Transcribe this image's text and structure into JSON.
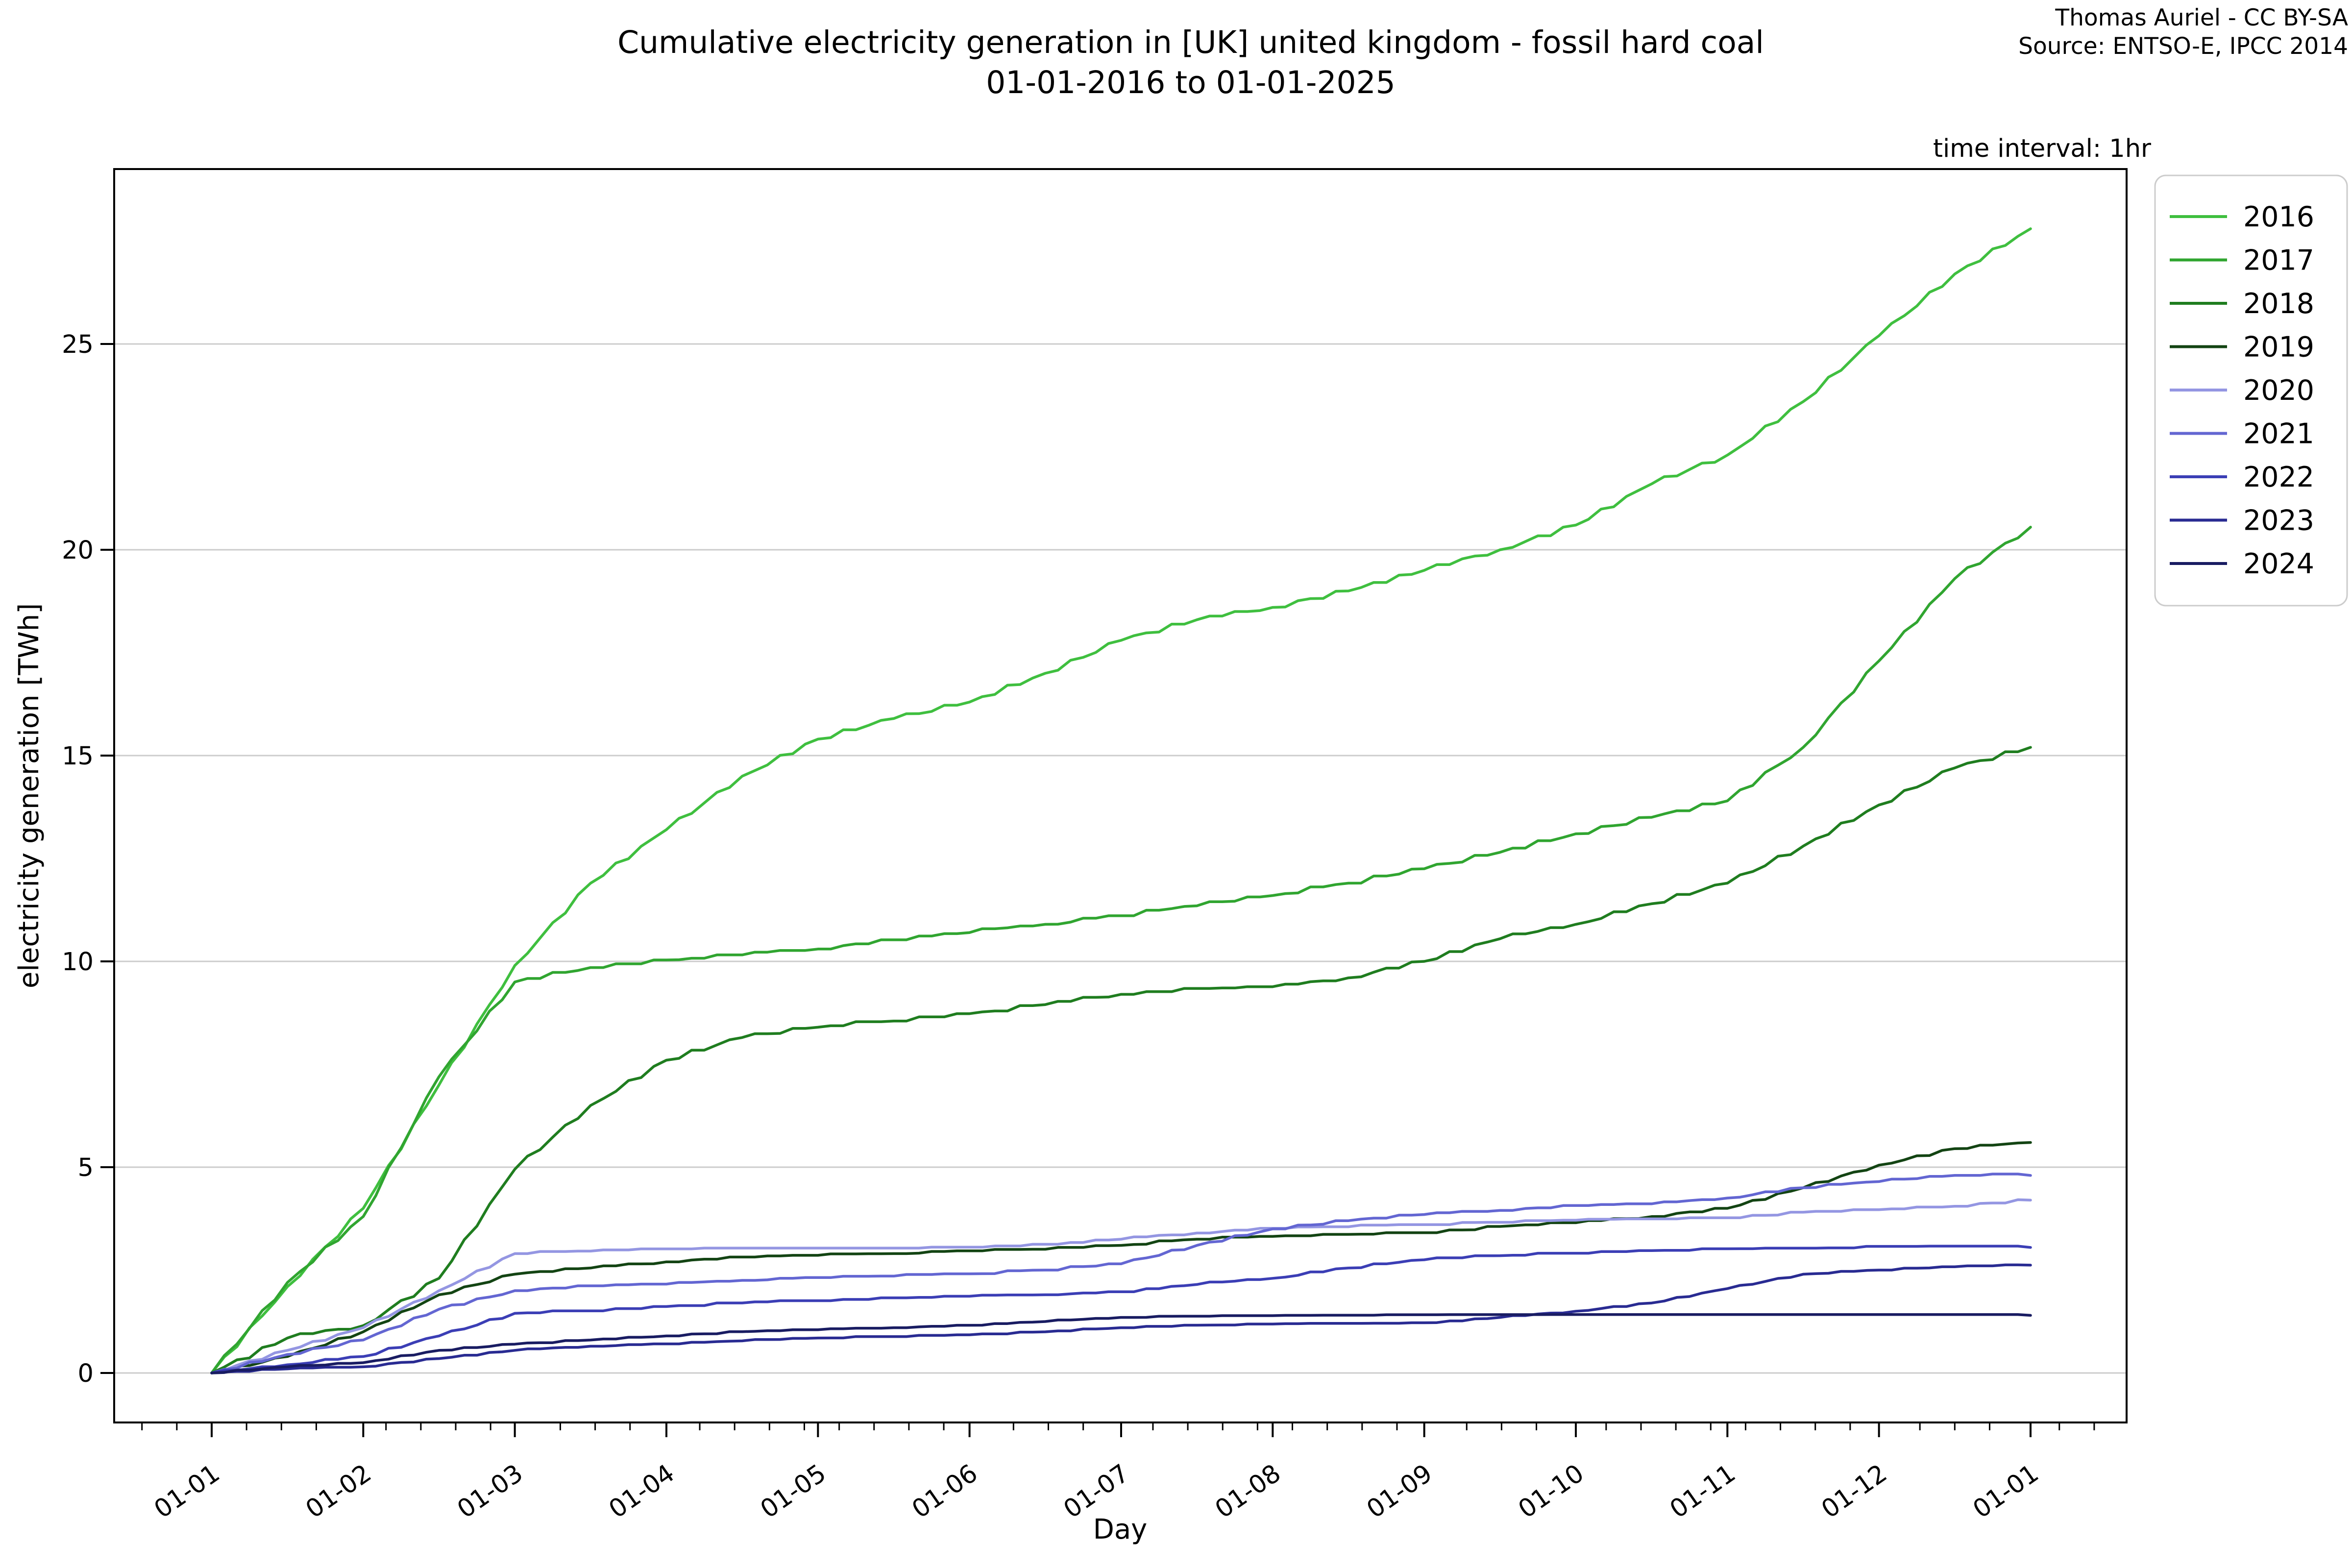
{
  "title": {
    "line1": "Cumulative electricity generation in [UK] united kingdom - fossil hard coal",
    "line2": "01-01-2016 to 01-01-2025"
  },
  "attribution": {
    "line1": "Thomas Auriel - CC BY-SA",
    "line2": "Source: ENTSO-E, IPCC 2014"
  },
  "annotations": {
    "time_interval": "time interval: 1hr"
  },
  "chart_data": {
    "type": "line",
    "title": "Cumulative electricity generation in [UK] united kingdom - fossil hard coal 01-01-2016 to 01-01-2025",
    "xlabel": "Day",
    "ylabel": "electricity generation [TWh]",
    "x_unit": "month of year (0 = Jan 1, 12 = following Jan 1)",
    "x_tick_labels": [
      "01-01",
      "01-02",
      "01-03",
      "01-04",
      "01-05",
      "01-06",
      "01-07",
      "01-08",
      "01-09",
      "01-10",
      "01-11",
      "01-12",
      "01-01"
    ],
    "y_ticks": [
      0,
      5,
      10,
      15,
      20,
      25
    ],
    "ylim": [
      -1.2,
      29.3
    ],
    "xlim_months": [
      -0.64,
      12.63
    ],
    "grid": "horizontal-only",
    "grid_color": "#cccccc",
    "legend_position": "outside upper right",
    "series": [
      {
        "name": "2016",
        "color": "#3fbf3f",
        "points": [
          [
            0,
            0
          ],
          [
            0.5,
            2.1
          ],
          [
            1,
            4.0
          ],
          [
            1.5,
            7.0
          ],
          [
            2,
            9.9
          ],
          [
            2.5,
            11.9
          ],
          [
            3,
            13.2
          ],
          [
            3.5,
            14.5
          ],
          [
            4,
            15.4
          ],
          [
            4.5,
            15.9
          ],
          [
            5,
            16.3
          ],
          [
            5.5,
            17.0
          ],
          [
            6,
            17.8
          ],
          [
            6.5,
            18.3
          ],
          [
            7,
            18.6
          ],
          [
            7.5,
            19.0
          ],
          [
            8,
            19.5
          ],
          [
            8.5,
            20.0
          ],
          [
            9,
            20.6
          ],
          [
            9.5,
            21.6
          ],
          [
            10,
            22.3
          ],
          [
            10.5,
            23.6
          ],
          [
            11,
            25.2
          ],
          [
            11.5,
            26.7
          ],
          [
            12,
            27.8
          ]
        ]
      },
      {
        "name": "2017",
        "color": "#30a530",
        "points": [
          [
            0,
            0
          ],
          [
            0.5,
            2.2
          ],
          [
            1,
            3.8
          ],
          [
            1.5,
            7.2
          ],
          [
            2,
            9.5
          ],
          [
            2.5,
            9.85
          ],
          [
            3,
            10.0
          ],
          [
            3.5,
            10.15
          ],
          [
            4,
            10.3
          ],
          [
            4.5,
            10.5
          ],
          [
            5,
            10.7
          ],
          [
            5.5,
            10.9
          ],
          [
            6,
            11.1
          ],
          [
            6.5,
            11.35
          ],
          [
            7,
            11.6
          ],
          [
            7.5,
            11.9
          ],
          [
            8,
            12.25
          ],
          [
            8.5,
            12.65
          ],
          [
            9,
            13.1
          ],
          [
            9.5,
            13.5
          ],
          [
            10,
            13.9
          ],
          [
            10.5,
            15.2
          ],
          [
            11,
            17.3
          ],
          [
            11.5,
            19.3
          ],
          [
            12,
            20.55
          ]
        ]
      },
      {
        "name": "2018",
        "color": "#1f7d1f",
        "points": [
          [
            0,
            0
          ],
          [
            0.5,
            0.85
          ],
          [
            1,
            1.15
          ],
          [
            1.5,
            2.3
          ],
          [
            2,
            4.95
          ],
          [
            2.5,
            6.5
          ],
          [
            3,
            7.6
          ],
          [
            3.5,
            8.15
          ],
          [
            4,
            8.4
          ],
          [
            4.5,
            8.55
          ],
          [
            5,
            8.7
          ],
          [
            5.5,
            8.95
          ],
          [
            6,
            9.2
          ],
          [
            6.5,
            9.3
          ],
          [
            7,
            9.35
          ],
          [
            7.5,
            9.6
          ],
          [
            8,
            10.0
          ],
          [
            8.5,
            10.55
          ],
          [
            9,
            10.9
          ],
          [
            9.5,
            11.4
          ],
          [
            10,
            11.9
          ],
          [
            10.5,
            12.8
          ],
          [
            11,
            13.8
          ],
          [
            11.5,
            14.7
          ],
          [
            12,
            15.2
          ]
        ]
      },
      {
        "name": "2019",
        "color": "#134413",
        "points": [
          [
            0,
            0
          ],
          [
            0.5,
            0.4
          ],
          [
            1,
            1.0
          ],
          [
            1.5,
            1.9
          ],
          [
            2,
            2.4
          ],
          [
            2.5,
            2.55
          ],
          [
            3,
            2.7
          ],
          [
            3.5,
            2.8
          ],
          [
            4,
            2.85
          ],
          [
            4.5,
            2.9
          ],
          [
            5,
            2.95
          ],
          [
            5.5,
            3.0
          ],
          [
            6,
            3.1
          ],
          [
            6.5,
            3.25
          ],
          [
            7,
            3.3
          ],
          [
            7.5,
            3.35
          ],
          [
            8,
            3.4
          ],
          [
            8.5,
            3.55
          ],
          [
            9,
            3.65
          ],
          [
            9.5,
            3.8
          ],
          [
            10,
            4.0
          ],
          [
            10.5,
            4.5
          ],
          [
            11,
            5.05
          ],
          [
            11.5,
            5.45
          ],
          [
            12,
            5.6
          ]
        ]
      },
      {
        "name": "2020",
        "color": "#9496e2",
        "points": [
          [
            0,
            0
          ],
          [
            0.5,
            0.55
          ],
          [
            1,
            1.1
          ],
          [
            1.5,
            2.0
          ],
          [
            2,
            2.9
          ],
          [
            2.5,
            2.95
          ],
          [
            3,
            3.0
          ],
          [
            3.5,
            3.0
          ],
          [
            4,
            3.0
          ],
          [
            4.5,
            3.0
          ],
          [
            5,
            3.05
          ],
          [
            5.5,
            3.1
          ],
          [
            6,
            3.25
          ],
          [
            6.5,
            3.4
          ],
          [
            7,
            3.5
          ],
          [
            7.5,
            3.55
          ],
          [
            8,
            3.6
          ],
          [
            8.5,
            3.65
          ],
          [
            9,
            3.7
          ],
          [
            9.5,
            3.72
          ],
          [
            10,
            3.75
          ],
          [
            10.5,
            3.9
          ],
          [
            11,
            3.95
          ],
          [
            11.5,
            4.05
          ],
          [
            12,
            4.2
          ]
        ]
      },
      {
        "name": "2021",
        "color": "#6366d2",
        "points": [
          [
            0,
            0
          ],
          [
            0.5,
            0.45
          ],
          [
            1,
            0.8
          ],
          [
            1.5,
            1.55
          ],
          [
            2,
            2.0
          ],
          [
            2.5,
            2.1
          ],
          [
            3,
            2.15
          ],
          [
            3.5,
            2.25
          ],
          [
            4,
            2.3
          ],
          [
            4.5,
            2.35
          ],
          [
            5,
            2.4
          ],
          [
            5.5,
            2.5
          ],
          [
            6,
            2.65
          ],
          [
            6.5,
            3.1
          ],
          [
            7,
            3.5
          ],
          [
            7.5,
            3.7
          ],
          [
            8,
            3.85
          ],
          [
            8.5,
            3.95
          ],
          [
            9,
            4.05
          ],
          [
            9.5,
            4.1
          ],
          [
            10,
            4.25
          ],
          [
            10.5,
            4.5
          ],
          [
            11,
            4.65
          ],
          [
            11.5,
            4.8
          ],
          [
            12,
            4.8
          ]
        ]
      },
      {
        "name": "2022",
        "color": "#3b3eb5",
        "points": [
          [
            0,
            0
          ],
          [
            0.5,
            0.2
          ],
          [
            1,
            0.4
          ],
          [
            1.5,
            0.9
          ],
          [
            2,
            1.45
          ],
          [
            2.5,
            1.5
          ],
          [
            3,
            1.6
          ],
          [
            3.5,
            1.7
          ],
          [
            4,
            1.75
          ],
          [
            4.5,
            1.8
          ],
          [
            5,
            1.85
          ],
          [
            5.5,
            1.9
          ],
          [
            6,
            1.95
          ],
          [
            6.5,
            2.15
          ],
          [
            7,
            2.3
          ],
          [
            7.5,
            2.55
          ],
          [
            8,
            2.75
          ],
          [
            8.5,
            2.85
          ],
          [
            9,
            2.9
          ],
          [
            9.5,
            2.95
          ],
          [
            10,
            3.0
          ],
          [
            10.5,
            3.0
          ],
          [
            11,
            3.05
          ],
          [
            11.5,
            3.05
          ],
          [
            12,
            3.05
          ]
        ]
      },
      {
        "name": "2023",
        "color": "#292b92",
        "points": [
          [
            0,
            0
          ],
          [
            0.5,
            0.1
          ],
          [
            1,
            0.15
          ],
          [
            1.5,
            0.35
          ],
          [
            2,
            0.55
          ],
          [
            2.5,
            0.65
          ],
          [
            3,
            0.7
          ],
          [
            3.5,
            0.78
          ],
          [
            4,
            0.85
          ],
          [
            4.5,
            0.88
          ],
          [
            5,
            0.92
          ],
          [
            5.5,
            1.0
          ],
          [
            6,
            1.1
          ],
          [
            6.5,
            1.15
          ],
          [
            7,
            1.18
          ],
          [
            7.5,
            1.2
          ],
          [
            8,
            1.2
          ],
          [
            8.5,
            1.35
          ],
          [
            9,
            1.5
          ],
          [
            9.5,
            1.7
          ],
          [
            10,
            2.05
          ],
          [
            10.5,
            2.4
          ],
          [
            11,
            2.5
          ],
          [
            11.5,
            2.58
          ],
          [
            12,
            2.62
          ]
        ]
      },
      {
        "name": "2024",
        "color": "#191c62",
        "points": [
          [
            0,
            0
          ],
          [
            0.5,
            0.15
          ],
          [
            1,
            0.25
          ],
          [
            1.5,
            0.55
          ],
          [
            2,
            0.7
          ],
          [
            2.5,
            0.8
          ],
          [
            3,
            0.9
          ],
          [
            3.5,
            1.0
          ],
          [
            4,
            1.05
          ],
          [
            4.5,
            1.1
          ],
          [
            5,
            1.15
          ],
          [
            5.5,
            1.25
          ],
          [
            6,
            1.35
          ],
          [
            6.5,
            1.37
          ],
          [
            7,
            1.38
          ],
          [
            7.5,
            1.39
          ],
          [
            8,
            1.4
          ],
          [
            8.5,
            1.4
          ],
          [
            9,
            1.4
          ],
          [
            9.5,
            1.4
          ],
          [
            10,
            1.4
          ],
          [
            10.5,
            1.4
          ],
          [
            11,
            1.4
          ],
          [
            11.5,
            1.4
          ],
          [
            12,
            1.4
          ]
        ]
      }
    ]
  }
}
